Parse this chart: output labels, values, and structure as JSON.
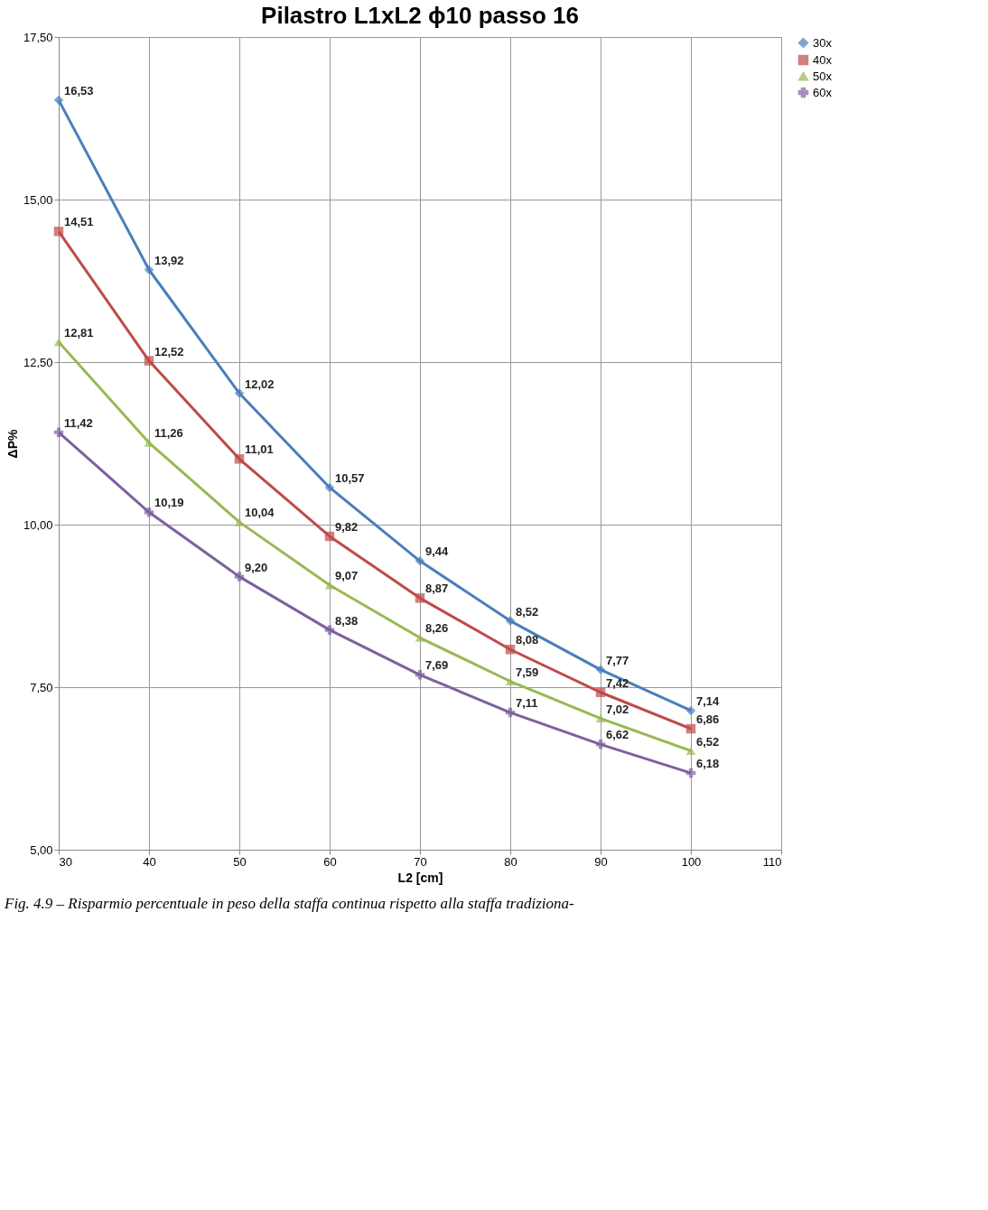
{
  "chart_data": {
    "type": "line",
    "title": "Pilastro L1xL2 ϕ10 passo 16",
    "xlabel": "L2 [cm]",
    "ylabel": "ΔP%",
    "annotations": [
      "Fig. 4.9 – Risparmio percentuale in peso della staffa continua rispetto alla staffa tradiziona-"
    ],
    "x": [
      30,
      40,
      50,
      60,
      70,
      80,
      90,
      100
    ],
    "xlim": [
      30,
      110
    ],
    "xticks": [
      30,
      40,
      50,
      60,
      70,
      80,
      90,
      100,
      110
    ],
    "ylim": [
      5,
      17.5
    ],
    "yticks": [
      {
        "value": 5,
        "label": "5,00"
      },
      {
        "value": 7.5,
        "label": "7,50"
      },
      {
        "value": 10,
        "label": "10,00"
      },
      {
        "value": 12.5,
        "label": "12,50"
      },
      {
        "value": 15,
        "label": "15,00"
      },
      {
        "value": 17.5,
        "label": "17,50"
      }
    ],
    "grid": true,
    "legend": "right",
    "line_style": "solid",
    "series": [
      {
        "name": "30x",
        "color": "#4a7ebb",
        "marker": "diamond",
        "values": [
          16.53,
          13.92,
          12.02,
          10.57,
          9.44,
          8.52,
          7.77,
          7.14
        ],
        "value_labels": [
          "16,53",
          "13,92",
          "12,02",
          "10,57",
          "9,44",
          "8,52",
          "7,77",
          "7,14"
        ]
      },
      {
        "name": "40x",
        "color": "#be4b48",
        "marker": "square",
        "values": [
          14.51,
          12.52,
          11.01,
          9.82,
          8.87,
          8.08,
          7.42,
          6.86
        ],
        "value_labels": [
          "14,51",
          "12,52",
          "11,01",
          "9,82",
          "8,87",
          "8,08",
          "7,42",
          "6,86"
        ]
      },
      {
        "name": "50x",
        "color": "#98b954",
        "marker": "triangle",
        "values": [
          12.81,
          11.26,
          10.04,
          9.07,
          8.26,
          7.59,
          7.02,
          6.52
        ],
        "value_labels": [
          "12,81",
          "11,26",
          "10,04",
          "9,07",
          "8,26",
          "7,59",
          "7,02",
          "6,52"
        ]
      },
      {
        "name": "60x",
        "color": "#7d60a0",
        "marker": "cross",
        "values": [
          11.42,
          10.19,
          9.2,
          8.38,
          7.69,
          7.11,
          6.62,
          6.18
        ],
        "value_labels": [
          "11,42",
          "10,19",
          "9,20",
          "8,38",
          "7,69",
          "7,11",
          "6,62",
          "6,18"
        ]
      }
    ]
  }
}
